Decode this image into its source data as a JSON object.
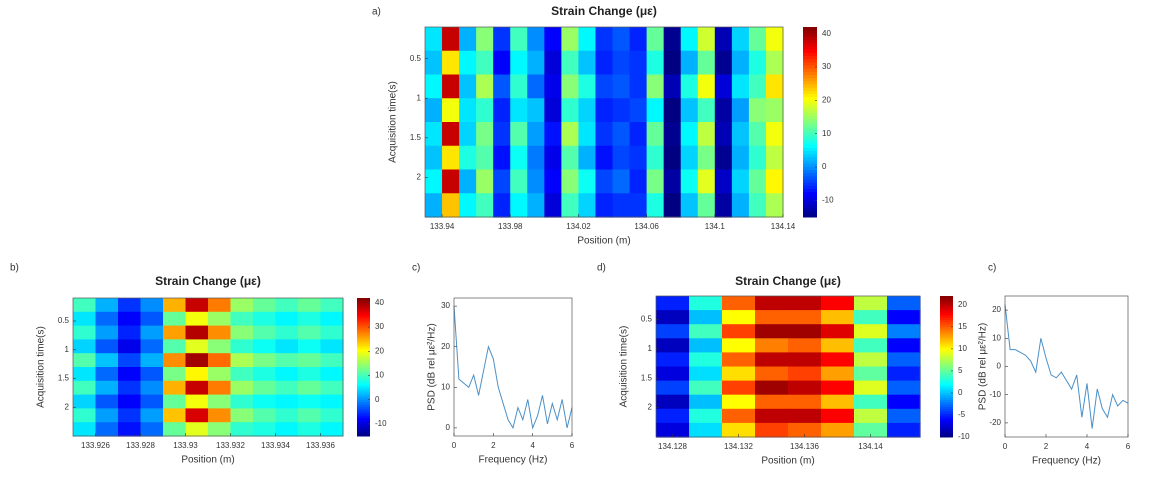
{
  "chart_data": [
    {
      "type": "heatmap",
      "label": "a)",
      "title": "Strain Change (με)",
      "xlabel": "Position (m)",
      "ylabel": "Acquisition time(s)",
      "colormap": "jet",
      "yreverse": true,
      "xlim": [
        133.93,
        134.14
      ],
      "xticks": [
        133.94,
        133.98,
        134.02,
        134.06,
        134.1,
        134.14
      ],
      "ylim": [
        0.1,
        2.5
      ],
      "yticks": [
        0.5,
        1,
        1.5,
        2
      ],
      "clim": [
        -15,
        42
      ],
      "cticks": [
        40,
        30,
        20,
        10,
        0,
        -10
      ],
      "x": [
        133.935,
        133.945,
        133.955,
        133.965,
        133.975,
        133.985,
        133.995,
        134.005,
        134.015,
        134.025,
        134.035,
        134.045,
        134.055,
        134.065,
        134.075,
        134.085,
        134.095,
        134.105,
        134.115,
        134.125,
        134.135
      ],
      "y": [
        0.25,
        0.55,
        0.85,
        1.15,
        1.45,
        1.75,
        2.05,
        2.35
      ],
      "z": [
        [
          5,
          38,
          2,
          14,
          -5,
          10,
          0,
          -8,
          15,
          6,
          -5,
          -3,
          -6,
          12,
          -14,
          6,
          18,
          -12,
          4,
          12,
          20
        ],
        [
          3,
          22,
          6,
          10,
          -8,
          6,
          2,
          -10,
          10,
          3,
          -6,
          -4,
          -5,
          8,
          -15,
          2,
          12,
          -14,
          2,
          8,
          16
        ],
        [
          6,
          38,
          3,
          16,
          -3,
          9,
          -2,
          -9,
          14,
          8,
          -4,
          -3,
          -5,
          14,
          -12,
          8,
          20,
          -10,
          5,
          10,
          22
        ],
        [
          2,
          20,
          5,
          9,
          -6,
          5,
          3,
          -10,
          9,
          4,
          -6,
          -5,
          -4,
          6,
          -15,
          3,
          10,
          -13,
          1,
          14,
          15
        ],
        [
          5,
          38,
          4,
          13,
          -5,
          11,
          1,
          -7,
          16,
          5,
          -5,
          -3,
          -6,
          12,
          -14,
          6,
          17,
          -12,
          3,
          11,
          20
        ],
        [
          3,
          22,
          8,
          11,
          -7,
          7,
          -1,
          -9,
          11,
          2,
          -7,
          -4,
          -5,
          9,
          -15,
          4,
          13,
          -14,
          2,
          9,
          17
        ],
        [
          6,
          38,
          2,
          15,
          -4,
          10,
          0,
          -8,
          14,
          7,
          -4,
          -2,
          -6,
          13,
          -13,
          7,
          19,
          -11,
          4,
          12,
          21
        ],
        [
          2,
          24,
          6,
          10,
          -6,
          6,
          2,
          -10,
          10,
          4,
          -6,
          -5,
          -5,
          8,
          -15,
          3,
          12,
          -13,
          2,
          10,
          16
        ]
      ]
    },
    {
      "type": "heatmap",
      "label": "b)",
      "title": "Strain Change (με)",
      "xlabel": "Position (m)",
      "ylabel": "Acquisition time(s)",
      "colormap": "jet",
      "yreverse": true,
      "xlim": [
        133.925,
        133.937
      ],
      "xticks": [
        133.926,
        133.928,
        133.93,
        133.932,
        133.934,
        133.936
      ],
      "ylim": [
        0.1,
        2.5
      ],
      "yticks": [
        0.5,
        1,
        1.5,
        2
      ],
      "clim": [
        -15,
        42
      ],
      "cticks": [
        40,
        30,
        20,
        10,
        0,
        -10
      ],
      "x": [
        133.9255,
        133.9265,
        133.9275,
        133.9285,
        133.9295,
        133.9305,
        133.9315,
        133.9325,
        133.9335,
        133.9345,
        133.9355,
        133.9365
      ],
      "y": [
        0.22,
        0.46,
        0.7,
        0.94,
        1.18,
        1.42,
        1.66,
        1.9,
        2.14,
        2.38
      ],
      "z": [
        [
          10,
          2,
          -5,
          0,
          25,
          38,
          28,
          15,
          12,
          10,
          12,
          10
        ],
        [
          5,
          -2,
          -8,
          -3,
          12,
          20,
          15,
          10,
          8,
          6,
          8,
          6
        ],
        [
          9,
          1,
          -6,
          1,
          26,
          39,
          27,
          14,
          11,
          9,
          11,
          9
        ],
        [
          4,
          -3,
          -9,
          -2,
          11,
          19,
          14,
          9,
          7,
          5,
          7,
          5
        ],
        [
          11,
          3,
          -4,
          2,
          27,
          40,
          29,
          16,
          13,
          11,
          12,
          10
        ],
        [
          5,
          -2,
          -8,
          -3,
          13,
          21,
          15,
          10,
          8,
          6,
          8,
          6
        ],
        [
          10,
          2,
          -5,
          0,
          25,
          38,
          28,
          15,
          12,
          10,
          12,
          10
        ],
        [
          4,
          -3,
          -8,
          -3,
          12,
          20,
          14,
          9,
          7,
          6,
          7,
          6
        ],
        [
          9,
          1,
          -5,
          1,
          24,
          37,
          27,
          14,
          11,
          9,
          11,
          9
        ],
        [
          5,
          -2,
          -7,
          -2,
          12,
          19,
          14,
          9,
          8,
          6,
          8,
          6
        ]
      ]
    },
    {
      "type": "line",
      "label": "c)",
      "xlabel": "Frequency (Hz)",
      "ylabel": "PSD (dB rel με²/Hz)",
      "color": "#4a90c8",
      "xlim": [
        0,
        6
      ],
      "xticks": [
        0,
        2,
        4,
        6
      ],
      "ylim": [
        -2,
        32
      ],
      "yticks": [
        0,
        10,
        20,
        30
      ],
      "x": [
        0,
        0.25,
        0.5,
        0.75,
        1,
        1.25,
        1.5,
        1.75,
        2,
        2.25,
        2.5,
        2.75,
        3,
        3.25,
        3.5,
        3.75,
        4,
        4.25,
        4.5,
        4.75,
        5,
        5.25,
        5.5,
        5.75,
        6
      ],
      "values": [
        30,
        12,
        11,
        10,
        13,
        8,
        14,
        20,
        17,
        10,
        6,
        2,
        0,
        5,
        2,
        7,
        0,
        3,
        8,
        1,
        6,
        2,
        7,
        0,
        5
      ]
    },
    {
      "type": "heatmap",
      "label": "d)",
      "title": "Strain Change (με)",
      "xlabel": "Position (m)",
      "ylabel": "Acquisition time(s)",
      "colormap": "jet",
      "yreverse": true,
      "xlim": [
        134.127,
        134.143
      ],
      "xticks": [
        134.128,
        134.132,
        134.136,
        134.14
      ],
      "ylim": [
        0.1,
        2.5
      ],
      "yticks": [
        0.5,
        1,
        1.5,
        2
      ],
      "clim": [
        -10,
        22
      ],
      "cticks": [
        20,
        15,
        10,
        5,
        0,
        -5,
        -10
      ],
      "x": [
        134.128,
        134.13,
        134.132,
        134.134,
        134.136,
        134.138,
        134.14,
        134.142
      ],
      "y": [
        0.22,
        0.46,
        0.7,
        0.94,
        1.18,
        1.42,
        1.66,
        1.9,
        2.14,
        2.38
      ],
      "z": [
        [
          -5,
          3,
          15,
          20,
          20,
          18,
          8,
          -3
        ],
        [
          -8,
          0,
          10,
          15,
          15,
          12,
          4,
          -6
        ],
        [
          -4,
          4,
          16,
          21,
          21,
          19,
          9,
          -2
        ],
        [
          -8,
          0,
          10,
          14,
          15,
          12,
          4,
          -6
        ],
        [
          -5,
          3,
          15,
          20,
          20,
          18,
          8,
          -3
        ],
        [
          -7,
          1,
          11,
          15,
          16,
          13,
          5,
          -5
        ],
        [
          -4,
          4,
          16,
          21,
          20,
          18,
          9,
          -3
        ],
        [
          -8,
          0,
          10,
          15,
          15,
          12,
          4,
          -6
        ],
        [
          -5,
          3,
          15,
          20,
          20,
          18,
          8,
          -3
        ],
        [
          -7,
          1,
          11,
          16,
          15,
          13,
          5,
          -5
        ]
      ]
    },
    {
      "type": "line",
      "label": "c)",
      "xlabel": "Frequency (Hz)",
      "ylabel": "PSD (dB rel με²/Hz)",
      "color": "#4a90c8",
      "xlim": [
        0,
        6
      ],
      "xticks": [
        0,
        2,
        4,
        6
      ],
      "ylim": [
        -25,
        25
      ],
      "yticks": [
        20,
        10,
        0,
        -10,
        -20
      ],
      "x": [
        0,
        0.25,
        0.5,
        0.75,
        1,
        1.25,
        1.5,
        1.75,
        2,
        2.25,
        2.5,
        2.75,
        3,
        3.25,
        3.5,
        3.75,
        4,
        4.25,
        4.5,
        4.75,
        5,
        5.25,
        5.5,
        5.75,
        6
      ],
      "values": [
        22,
        6,
        6,
        5,
        4,
        2,
        -2,
        10,
        3,
        -3,
        -4,
        -2,
        -5,
        -8,
        -3,
        -18,
        -6,
        -22,
        -8,
        -15,
        -18,
        -10,
        -14,
        -12,
        -13
      ]
    }
  ]
}
